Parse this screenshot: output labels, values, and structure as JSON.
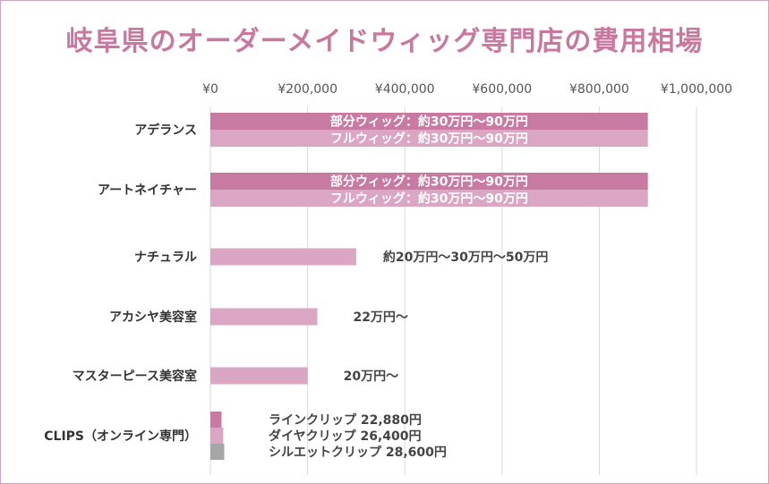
{
  "chart_data": {
    "type": "bar",
    "orientation": "horizontal",
    "title": "岐阜県のオーダーメイドウィッグ専門店の費用相場",
    "xlim": [
      0,
      1000000
    ],
    "x_ticks": [
      0,
      200000,
      400000,
      600000,
      800000,
      1000000
    ],
    "x_tick_labels": [
      "¥0",
      "¥200,000",
      "¥400,000",
      "¥600,000",
      "¥800,000",
      "¥1,000,000"
    ],
    "grid": true,
    "colors": {
      "primary": "#c97aa3",
      "secondary": "#dba5c4",
      "gray": "#a6a6a6",
      "title": "#c8789f"
    },
    "categories": [
      {
        "name": "アデランス",
        "bars": [
          {
            "value": 900000,
            "color": "primary",
            "label": "部分ウィッグ：約30万円～90万円",
            "label_position": "inside"
          },
          {
            "value": 900000,
            "color": "secondary",
            "label": "フルウィッグ：約30万円～90万円",
            "label_position": "inside"
          }
        ]
      },
      {
        "name": "アートネイチャー",
        "bars": [
          {
            "value": 900000,
            "color": "primary",
            "label": "部分ウィッグ：約30万円～90万円",
            "label_position": "inside"
          },
          {
            "value": 900000,
            "color": "secondary",
            "label": "フルウィッグ：約30万円～90万円",
            "label_position": "inside"
          }
        ]
      },
      {
        "name": "ナチュラル",
        "bars": [
          {
            "value": 300000,
            "color": "secondary",
            "label": "約20万円～30万円～50万円",
            "label_position": "outside"
          }
        ]
      },
      {
        "name": "アカシヤ美容室",
        "bars": [
          {
            "value": 220000,
            "color": "secondary",
            "label": "22万円～",
            "label_position": "outside"
          }
        ]
      },
      {
        "name": "マスターピース美容室",
        "bars": [
          {
            "value": 200000,
            "color": "secondary",
            "label": "20万円～",
            "label_position": "outside"
          }
        ]
      },
      {
        "name": "CLIPS（オンライン専門）",
        "bars": [
          {
            "value": 22880,
            "color": "primary",
            "label": "ラインクリップ 22,880円",
            "label_position": "outside"
          },
          {
            "value": 26400,
            "color": "secondary",
            "label": "ダイヤクリップ 26,400円",
            "label_position": "outside"
          },
          {
            "value": 28600,
            "color": "gray",
            "label": "シルエットクリップ 28,600円",
            "label_position": "outside"
          }
        ]
      }
    ]
  }
}
